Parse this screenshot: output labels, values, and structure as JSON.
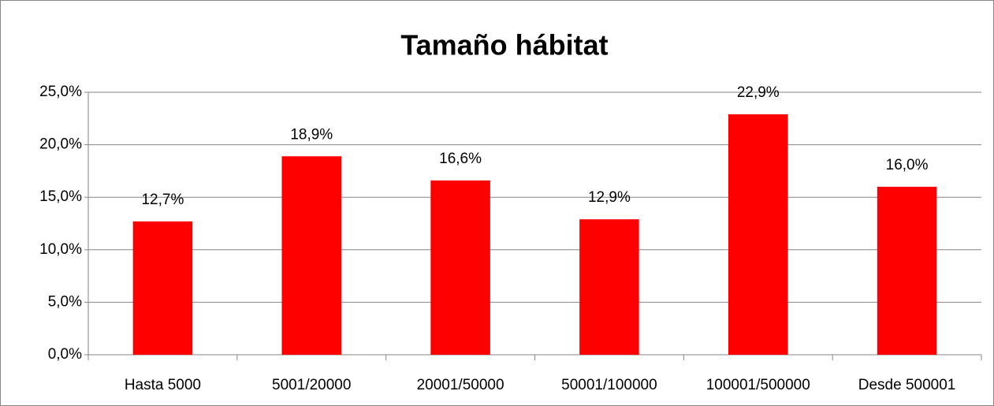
{
  "chart_data": {
    "type": "bar",
    "title": "Tamaño hábitat",
    "categories": [
      "Hasta 5000",
      "5001/20000",
      "20001/50000",
      "50001/100000",
      "100001/500000",
      "Desde 500001"
    ],
    "values": [
      12.7,
      18.9,
      16.6,
      12.9,
      22.9,
      16.0
    ],
    "value_labels": [
      "12,7%",
      "18,9%",
      "16,6%",
      "12,9%",
      "22,9%",
      "16,0%"
    ],
    "color": "#ff0000",
    "ylim": [
      0,
      25
    ],
    "yticks": [
      {
        "value": 0,
        "label": "0,0%"
      },
      {
        "value": 5,
        "label": "5,0%"
      },
      {
        "value": 10,
        "label": "10,0%"
      },
      {
        "value": 15,
        "label": "15,0%"
      },
      {
        "value": 20,
        "label": "20,0%"
      },
      {
        "value": 25,
        "label": "25,0%"
      }
    ],
    "grid": true
  }
}
